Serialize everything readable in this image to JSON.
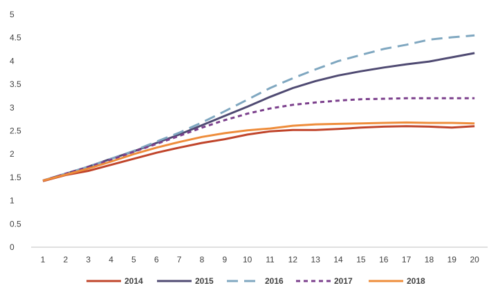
{
  "chart_data": {
    "type": "line",
    "title": "",
    "xlabel": "",
    "ylabel": "",
    "x": [
      1,
      2,
      3,
      4,
      5,
      6,
      7,
      8,
      9,
      10,
      11,
      12,
      13,
      14,
      15,
      16,
      17,
      18,
      19,
      20
    ],
    "ylim": [
      0,
      5
    ],
    "yticks": [
      "0",
      "0.5",
      "1",
      "1.5",
      "2",
      "2.5",
      "3",
      "3.5",
      "4",
      "4.5",
      "5"
    ],
    "xticks": [
      "1",
      "2",
      "3",
      "4",
      "5",
      "6",
      "7",
      "8",
      "9",
      "10",
      "11",
      "12",
      "13",
      "14",
      "15",
      "16",
      "17",
      "18",
      "19",
      "20"
    ],
    "grid": false,
    "legend_position": "bottom",
    "series": [
      {
        "name": "2014",
        "color": "#C0442A",
        "dash": "solid",
        "values": [
          1.42,
          1.55,
          1.64,
          1.77,
          1.9,
          2.03,
          2.14,
          2.24,
          2.32,
          2.42,
          2.49,
          2.52,
          2.52,
          2.54,
          2.57,
          2.59,
          2.6,
          2.59,
          2.57,
          2.6
        ]
      },
      {
        "name": "2015",
        "color": "#4F4A72",
        "dash": "solid",
        "values": [
          1.43,
          1.58,
          1.73,
          1.9,
          2.06,
          2.24,
          2.42,
          2.62,
          2.82,
          3.02,
          3.23,
          3.42,
          3.57,
          3.69,
          3.78,
          3.86,
          3.93,
          3.99,
          4.08,
          4.17
        ]
      },
      {
        "name": "2016",
        "color": "#7FA7C0",
        "dash": "long",
        "values": [
          1.43,
          1.58,
          1.73,
          1.9,
          2.07,
          2.27,
          2.46,
          2.68,
          2.92,
          3.17,
          3.42,
          3.63,
          3.82,
          4.0,
          4.13,
          4.26,
          4.35,
          4.46,
          4.51,
          4.55
        ]
      },
      {
        "name": "2017",
        "color": "#7B3F8C",
        "dash": "short",
        "values": [
          1.43,
          1.58,
          1.72,
          1.88,
          2.05,
          2.22,
          2.39,
          2.57,
          2.73,
          2.87,
          2.98,
          3.06,
          3.11,
          3.15,
          3.18,
          3.19,
          3.2,
          3.2,
          3.2,
          3.2
        ]
      },
      {
        "name": "2018",
        "color": "#EE8C3A",
        "dash": "solid",
        "values": [
          1.43,
          1.56,
          1.69,
          1.84,
          2.0,
          2.14,
          2.26,
          2.37,
          2.45,
          2.51,
          2.55,
          2.61,
          2.64,
          2.65,
          2.66,
          2.67,
          2.68,
          2.67,
          2.67,
          2.66
        ]
      }
    ]
  }
}
